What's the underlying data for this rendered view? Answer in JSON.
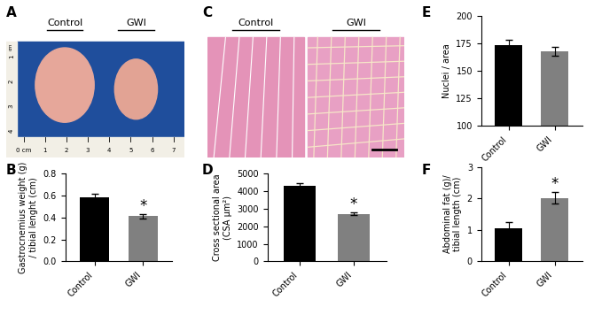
{
  "panel_labels": [
    "A",
    "B",
    "C",
    "D",
    "E",
    "F"
  ],
  "images": [
    {
      "panel": "A",
      "captions": [
        "Control",
        "GWI"
      ],
      "ruler": {
        "unit": "cm",
        "labels": [
          0,
          1,
          2,
          3,
          4,
          5,
          6,
          7
        ],
        "vertical_labels": [
          1,
          2,
          3,
          4
        ]
      }
    },
    {
      "panel": "C",
      "captions": [
        "Control",
        "GWI"
      ]
    }
  ],
  "chart_data": [
    {
      "type": "bar",
      "panel": "B",
      "categories": [
        "Control",
        "GWI"
      ],
      "y_label": "Gastrocnemius weight (g)\n/ tibial lenght (cm)",
      "values": [
        0.58,
        0.41
      ],
      "errors": [
        0.03,
        0.02
      ],
      "colors": [
        "#000000",
        "#808080"
      ],
      "ylim": [
        0.0,
        0.8
      ],
      "yticks": [
        0.0,
        0.2,
        0.4,
        0.6,
        0.8
      ],
      "annotations": [
        {
          "text": "*",
          "category": "GWI"
        }
      ]
    },
    {
      "type": "bar",
      "panel": "D",
      "categories": [
        "Control",
        "GWI"
      ],
      "y_label": "Cross sectional area\n(CSA μm²)",
      "values": [
        4300,
        2700
      ],
      "errors": [
        150,
        80
      ],
      "colors": [
        "#000000",
        "#808080"
      ],
      "ylim": [
        0,
        5000
      ],
      "yticks": [
        0,
        1000,
        2000,
        3000,
        4000,
        5000
      ],
      "annotations": [
        {
          "text": "*",
          "category": "GWI"
        }
      ]
    },
    {
      "type": "bar",
      "panel": "E",
      "categories": [
        "Control",
        "GWI"
      ],
      "y_label": "Nuclei / area",
      "values": [
        173,
        168
      ],
      "errors": [
        5,
        4
      ],
      "colors": [
        "#000000",
        "#808080"
      ],
      "ylim": [
        100,
        200
      ],
      "yticks": [
        100,
        125,
        150,
        175,
        200
      ],
      "annotations": []
    },
    {
      "type": "bar",
      "panel": "F",
      "categories": [
        "Control",
        "GWI"
      ],
      "y_label": "Abdominal fat (g)/\ntibial length (cm)",
      "values": [
        1.05,
        2.02
      ],
      "errors": [
        0.2,
        0.18
      ],
      "colors": [
        "#000000",
        "#808080"
      ],
      "ylim": [
        0,
        3
      ],
      "yticks": [
        0,
        1,
        2,
        3
      ],
      "annotations": [
        {
          "text": "*",
          "category": "GWI"
        }
      ]
    }
  ]
}
